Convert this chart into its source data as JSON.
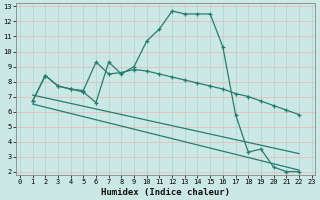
{
  "line1_x": [
    1,
    2,
    3,
    4,
    5,
    6,
    7,
    8,
    9,
    10,
    11,
    12,
    13,
    14,
    15,
    16,
    17,
    18,
    19,
    20,
    21,
    22
  ],
  "line1_y": [
    6.7,
    8.4,
    7.7,
    7.5,
    7.3,
    6.6,
    9.3,
    8.5,
    9.0,
    10.7,
    11.5,
    12.7,
    12.5,
    12.5,
    12.5,
    10.3,
    5.8,
    3.3,
    3.5,
    2.3,
    2.0,
    2.0
  ],
  "line2_x": [
    1,
    2,
    3,
    4,
    5,
    6,
    7,
    8,
    9,
    10,
    11,
    12,
    13,
    14,
    15,
    16,
    17,
    18,
    19,
    20,
    21,
    22
  ],
  "line2_y": [
    6.7,
    8.4,
    7.7,
    7.5,
    7.4,
    9.3,
    8.5,
    8.6,
    8.8,
    8.7,
    8.5,
    8.3,
    8.1,
    7.9,
    7.7,
    7.5,
    7.2,
    7.0,
    6.7,
    6.4,
    6.1,
    5.8
  ],
  "line3_x": [
    1,
    22
  ],
  "line3_y": [
    6.5,
    2.1
  ],
  "line4_x": [
    1,
    22
  ],
  "line4_y": [
    7.1,
    3.2
  ],
  "xlabel": "Humidex (Indice chaleur)",
  "xlim": [
    -0.3,
    23.3
  ],
  "ylim": [
    1.8,
    13.2
  ],
  "yticks": [
    2,
    3,
    4,
    5,
    6,
    7,
    8,
    9,
    10,
    11,
    12,
    13
  ],
  "xticks": [
    0,
    1,
    2,
    3,
    4,
    5,
    6,
    7,
    8,
    9,
    10,
    11,
    12,
    13,
    14,
    15,
    16,
    17,
    18,
    19,
    20,
    21,
    22,
    23
  ],
  "bg_color": "#cce8e5",
  "line_color": "#267d6e",
  "grid_color": "#aad4cf",
  "grid_color_h": "#f0c0c0"
}
